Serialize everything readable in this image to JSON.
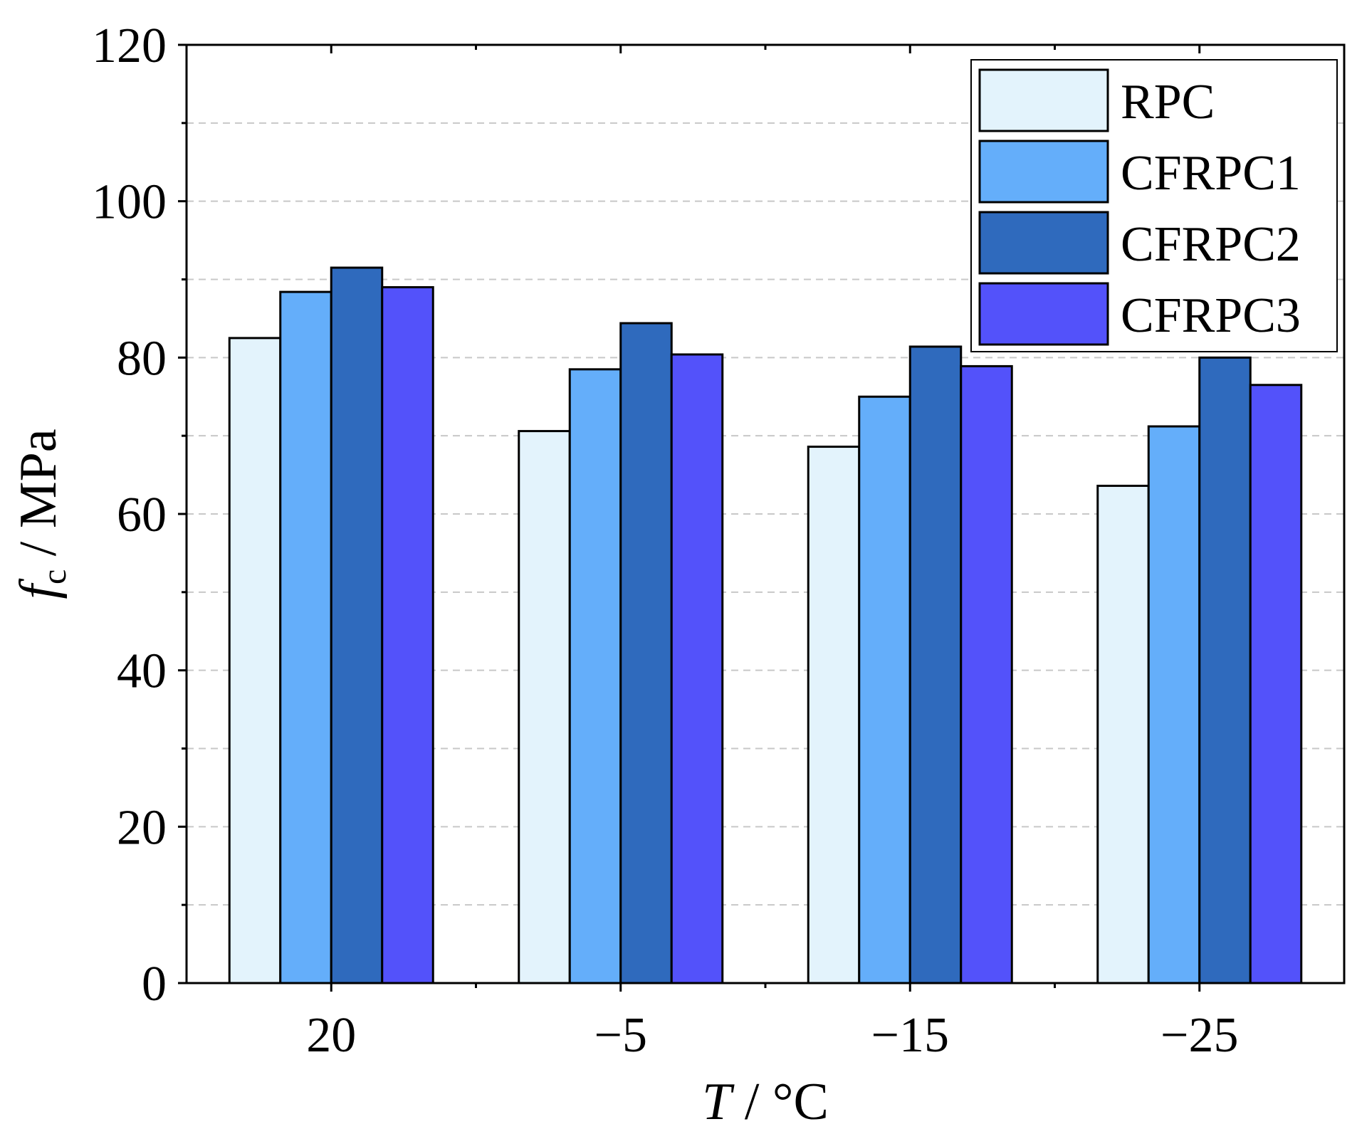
{
  "chart_data": {
    "type": "bar",
    "categories": [
      "20",
      "−5",
      "−15",
      "−25"
    ],
    "series": [
      {
        "name": "RPC",
        "values": [
          82.5,
          70.6,
          68.6,
          63.6
        ],
        "color": "#e3f3fc"
      },
      {
        "name": "CFRPC1",
        "values": [
          88.4,
          78.5,
          75.0,
          71.2
        ],
        "color": "#64aefa"
      },
      {
        "name": "CFRPC2",
        "values": [
          91.5,
          84.4,
          81.4,
          80.0
        ],
        "color": "#2f6abd"
      },
      {
        "name": "CFRPC3",
        "values": [
          89.0,
          80.4,
          78.9,
          76.5
        ],
        "color": "#5352fa"
      }
    ],
    "ylim": [
      0,
      120
    ],
    "yticks": [
      0,
      20,
      40,
      60,
      80,
      100,
      120
    ],
    "minor_gridlines": [
      10,
      30,
      50,
      70,
      90,
      110
    ],
    "grid": "dashed horizontal",
    "legend": "top-right",
    "xlabel": {
      "symbol": "T",
      "unit": " / °C"
    },
    "ylabel": {
      "symbol": "f",
      "subscript": "c",
      "unit": " / MPa"
    }
  }
}
